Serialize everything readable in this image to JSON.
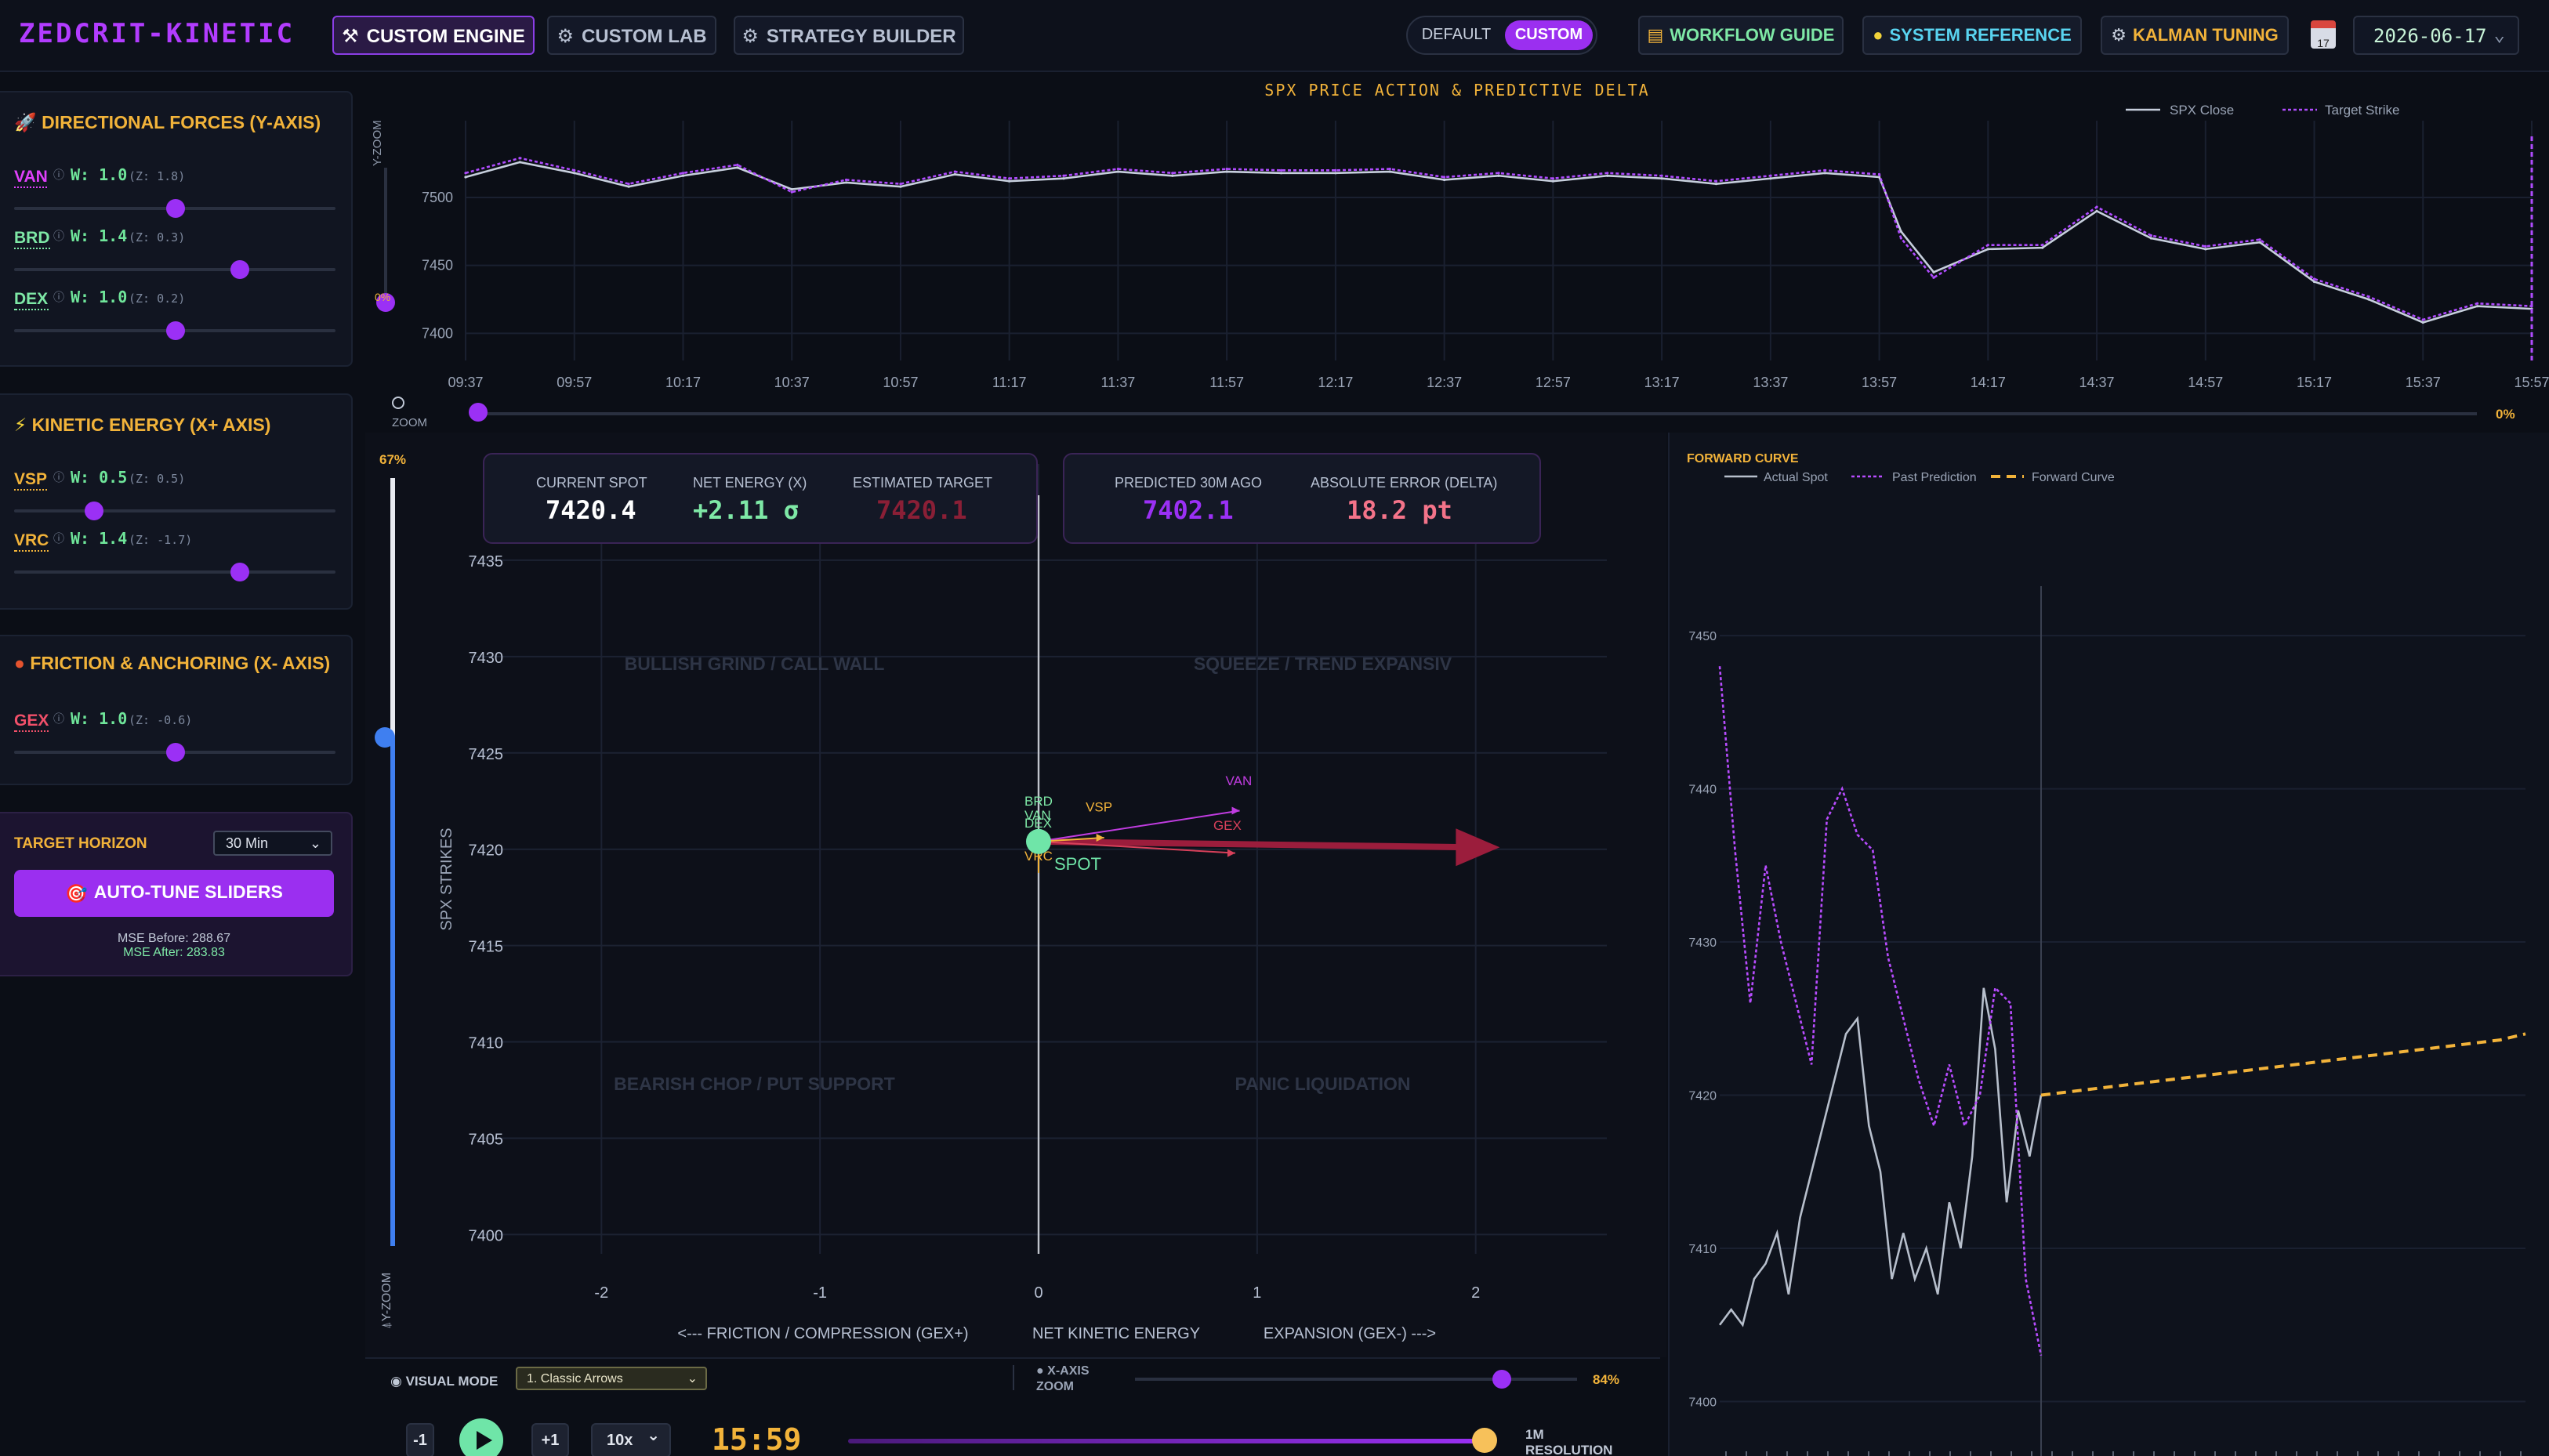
{
  "header": {
    "brand": "ZEDCRIT-KINETIC",
    "tabs": [
      {
        "label": "CUSTOM ENGINE",
        "icon": "wand-icon"
      },
      {
        "label": "CUSTOM LAB",
        "icon": "gear-icon"
      },
      {
        "label": "STRATEGY BUILDER",
        "icon": "gear-icon"
      }
    ],
    "mode": {
      "default": "DEFAULT",
      "custom": "CUSTOM",
      "selected": "CUSTOM"
    },
    "workflow": "WORKFLOW GUIDE",
    "reference": "SYSTEM REFERENCE",
    "kalman": "KALMAN TUNING",
    "calendar_day": "17",
    "date": "2026-06-17"
  },
  "panels": {
    "directional": {
      "title": "DIRECTIONAL FORCES (Y-AXIS)",
      "sliders": [
        {
          "name": "VAN",
          "w": "W: 1.0",
          "z": "(Z: 1.8)",
          "value": 0.5,
          "color": "#e040fb"
        },
        {
          "name": "BRD",
          "w": "W: 1.4",
          "z": "(Z: 0.3)",
          "value": 0.7,
          "color": "#7ee8a6"
        },
        {
          "name": "DEX",
          "w": "W: 1.0",
          "z": "(Z: 0.2)",
          "value": 0.5,
          "color": "#7ee8a6"
        }
      ]
    },
    "kinetic": {
      "title": "KINETIC ENERGY (X+ AXIS)",
      "sliders": [
        {
          "name": "VSP",
          "w": "W: 0.5",
          "z": "(Z: 0.5)",
          "value": 0.25,
          "color": "#f2b33a"
        },
        {
          "name": "VRC",
          "w": "W: 1.4",
          "z": "(Z: -1.7)",
          "value": 0.7,
          "color": "#f2b33a"
        }
      ]
    },
    "friction": {
      "title": "FRICTION & ANCHORING (X- AXIS)",
      "sliders": [
        {
          "name": "GEX",
          "w": "W: 1.0",
          "z": "(Z: -0.6)",
          "value": 0.5,
          "color": "#f2506a"
        }
      ]
    },
    "target": {
      "label": "TARGET HORIZON",
      "horizon": "30 Min",
      "autotune": "AUTO-TUNE SLIDERS",
      "mse_before": "MSE Before: 288.67",
      "mse_after": "MSE After: 283.83"
    }
  },
  "top_chart": {
    "title": "SPX PRICE ACTION & PREDICTIVE DELTA",
    "legend": [
      "SPX Close",
      "Target Strike"
    ],
    "y_zoom": "Y-ZOOM",
    "y_zoom_pct": "0%",
    "zoom": "ZOOM",
    "x_zoom_pct": "0%"
  },
  "main_chart": {
    "y_zoom_pct": "67%",
    "y_zoom_label": "Y-ZOOM",
    "y_zoom_icon": "mouse-icon",
    "quadrants": [
      "BULLISH GRIND / CALL WALL",
      "SQUEEZE / TREND EXPANSIV",
      "BEARISH CHOP / PUT SUPPORT",
      "PANIC LIQUIDATION"
    ],
    "ylabel": "SPX STRIKES",
    "xlabel_left": "<--- FRICTION / COMPRESSION (GEX+)",
    "xlabel_mid": "NET KINETIC ENERGY",
    "xlabel_right": "EXPANSION (GEX-) --->",
    "spot_label": "SPOT",
    "vectors": [
      "BRD",
      "VAN",
      "DEX",
      "VSP",
      "VAN",
      "GEX",
      "VRC"
    ],
    "info": {
      "current_spot_label": "CURRENT SPOT",
      "current_spot": "7420.4",
      "net_energy_label": "NET ENERGY (X)",
      "net_energy": "+2.11 σ",
      "est_target_label": "ESTIMATED TARGET",
      "est_target": "7420.1",
      "pred_label": "PREDICTED 30M AGO",
      "pred": "7402.1",
      "abs_err_label": "ABSOLUTE ERROR (DELTA)",
      "abs_err": "18.2 pt"
    },
    "visual_mode_label": "VISUAL MODE",
    "visual_mode": "1. Classic Arrows",
    "x_axis_zoom": "X-AXIS",
    "x_axis_zoom2": "ZOOM",
    "x_zoom_pct": "84%"
  },
  "playback": {
    "minus": "-1",
    "plus": "+1",
    "speed": "10x",
    "clock": "15:59",
    "resolution": "1M",
    "resolution_label": "RESOLUTION"
  },
  "forward": {
    "title": "FORWARD CURVE",
    "legend": [
      "Actual Spot",
      "Past Prediction",
      "Forward Curve"
    ]
  },
  "chart_data": [
    {
      "type": "line",
      "title": "SPX PRICE ACTION & PREDICTIVE DELTA",
      "x_ticks": [
        "09:37",
        "09:57",
        "10:17",
        "10:37",
        "10:57",
        "11:17",
        "11:37",
        "11:57",
        "12:17",
        "12:37",
        "12:57",
        "13:17",
        "13:37",
        "13:57",
        "14:17",
        "14:37",
        "14:57",
        "15:17",
        "15:37",
        "15:57"
      ],
      "y_ticks": [
        7400,
        7450,
        7500
      ],
      "ylim": [
        7380,
        7545
      ],
      "series": [
        {
          "name": "SPX Close",
          "x": [
            "09:37",
            "09:47",
            "09:57",
            "10:07",
            "10:17",
            "10:27",
            "10:37",
            "10:47",
            "10:57",
            "11:07",
            "11:17",
            "11:27",
            "11:37",
            "11:47",
            "11:57",
            "12:07",
            "12:17",
            "12:27",
            "12:37",
            "12:47",
            "12:57",
            "13:07",
            "13:17",
            "13:27",
            "13:37",
            "13:47",
            "13:57",
            "14:01",
            "14:07",
            "14:17",
            "14:27",
            "14:37",
            "14:47",
            "14:57",
            "15:07",
            "15:17",
            "15:27",
            "15:37",
            "15:47",
            "15:57"
          ],
          "values": [
            7515,
            7526,
            7518,
            7508,
            7516,
            7522,
            7506,
            7511,
            7508,
            7517,
            7512,
            7514,
            7519,
            7516,
            7519,
            7518,
            7518,
            7519,
            7513,
            7516,
            7512,
            7516,
            7514,
            7510,
            7514,
            7518,
            7515,
            7475,
            7445,
            7462,
            7463,
            7490,
            7470,
            7462,
            7467,
            7438,
            7425,
            7408,
            7420,
            7418
          ]
        },
        {
          "name": "Target Strike",
          "x": [
            "09:37",
            "09:47",
            "09:57",
            "10:07",
            "10:17",
            "10:27",
            "10:37",
            "10:47",
            "10:57",
            "11:07",
            "11:17",
            "11:27",
            "11:37",
            "11:47",
            "11:57",
            "12:07",
            "12:17",
            "12:27",
            "12:37",
            "12:47",
            "12:57",
            "13:07",
            "13:17",
            "13:27",
            "13:37",
            "13:47",
            "13:57",
            "14:01",
            "14:07",
            "14:17",
            "14:27",
            "14:37",
            "14:47",
            "14:57",
            "15:07",
            "15:17",
            "15:27",
            "15:37",
            "15:47",
            "15:57"
          ],
          "values": [
            7518,
            7529,
            7520,
            7510,
            7518,
            7524,
            7504,
            7513,
            7510,
            7519,
            7514,
            7516,
            7521,
            7518,
            7521,
            7520,
            7520,
            7521,
            7515,
            7518,
            7514,
            7518,
            7516,
            7512,
            7516,
            7520,
            7517,
            7470,
            7441,
            7465,
            7465,
            7493,
            7472,
            7464,
            7469,
            7440,
            7427,
            7410,
            7422,
            7420
          ]
        }
      ]
    },
    {
      "type": "scatter",
      "title": "",
      "xlabel": "NET KINETIC ENERGY",
      "ylabel": "SPX STRIKES",
      "x_ticks": [
        -2,
        -1,
        0,
        1,
        2
      ],
      "y_ticks": [
        7400,
        7405,
        7410,
        7415,
        7420,
        7425,
        7430,
        7435
      ],
      "xlim": [
        -2.6,
        2.6
      ],
      "ylim": [
        7399,
        7440
      ],
      "spot": {
        "x": 0,
        "y": 7420.4
      },
      "net_vector": {
        "x": 2.11,
        "y": 7420.1
      },
      "component_vectors": [
        {
          "name": "VAN",
          "x": 0.92,
          "y": 7422.0
        },
        {
          "name": "GEX",
          "x": 0.9,
          "y": 7419.8
        },
        {
          "name": "VSP",
          "x": 0.3,
          "y": 7420.6
        },
        {
          "name": "BRD",
          "x": 0.0,
          "y": 7421.0
        },
        {
          "name": "DEX",
          "x": 0.0,
          "y": 7420.8
        },
        {
          "name": "VRC",
          "x": 0.0,
          "y": 7418.6
        }
      ]
    },
    {
      "type": "line",
      "title": "FORWARD CURVE",
      "y_ticks": [
        7400,
        7410,
        7420,
        7430,
        7440,
        7450
      ],
      "ylim": [
        7399,
        7452
      ],
      "series": [
        {
          "name": "Actual Spot",
          "values": [
            7405,
            7406,
            7405,
            7408,
            7409,
            7411,
            7407,
            7412,
            7415,
            7418,
            7421,
            7424,
            7425,
            7418,
            7415,
            7408,
            7411,
            7408,
            7410,
            7407,
            7413,
            7410,
            7416,
            7427,
            7423,
            7413,
            7419,
            7416,
            7420
          ]
        },
        {
          "name": "Past Prediction",
          "values": [
            7448,
            7436,
            7426,
            7435,
            7430,
            7426,
            7422,
            7438,
            7440,
            7437,
            7436,
            7429,
            7425,
            7421,
            7418,
            7422,
            7418,
            7420,
            7427,
            7426,
            7408,
            7403
          ]
        },
        {
          "name": "Forward Curve",
          "values": [
            7420,
            7420.2,
            7420.4,
            7420.6,
            7420.8,
            7421,
            7421.2,
            7421.4,
            7421.6,
            7421.8,
            7422,
            7422.2,
            7422.4,
            7422.6,
            7422.8,
            7423,
            7423.2,
            7423.4,
            7423.6,
            7424
          ]
        }
      ]
    }
  ]
}
